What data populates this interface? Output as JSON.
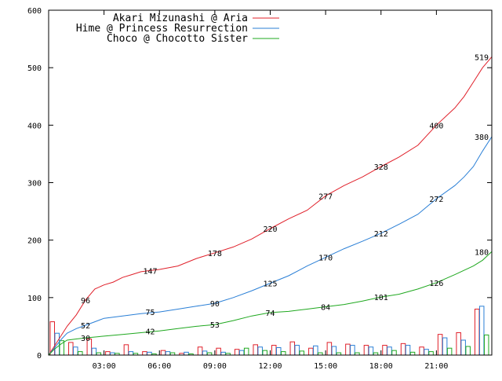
{
  "chart_data": {
    "type": "line",
    "title": "",
    "xlabel": "",
    "ylabel": "",
    "xlim": [
      0,
      24
    ],
    "ylim": [
      0,
      600
    ],
    "grid": false,
    "legend_position": "top-left",
    "x_ticks": [
      {
        "value": 3,
        "label": "03:00"
      },
      {
        "value": 6,
        "label": "06:00"
      },
      {
        "value": 9,
        "label": "09:00"
      },
      {
        "value": 12,
        "label": "12:00"
      },
      {
        "value": 15,
        "label": "15:00"
      },
      {
        "value": 18,
        "label": "18:00"
      },
      {
        "value": 21,
        "label": "21:00"
      }
    ],
    "y_ticks": [
      {
        "value": 0,
        "label": "0"
      },
      {
        "value": 100,
        "label": "100"
      },
      {
        "value": 200,
        "label": "200"
      },
      {
        "value": 300,
        "label": "300"
      },
      {
        "value": 400,
        "label": "400"
      },
      {
        "value": 500,
        "label": "500"
      },
      {
        "value": 600,
        "label": "600"
      }
    ],
    "series": [
      {
        "name": "Akari Mizunashi @ Aria",
        "color": "#e0202a",
        "points": [
          [
            0,
            0
          ],
          [
            0.3,
            15
          ],
          [
            0.7,
            35
          ],
          [
            1,
            50
          ],
          [
            1.5,
            70
          ],
          [
            2,
            96
          ],
          [
            2.5,
            115
          ],
          [
            3,
            122
          ],
          [
            3.5,
            127
          ],
          [
            4,
            135
          ],
          [
            4.5,
            140
          ],
          [
            5,
            145
          ],
          [
            5.5,
            147
          ],
          [
            6,
            149
          ],
          [
            7,
            155
          ],
          [
            8,
            168
          ],
          [
            9,
            178
          ],
          [
            10,
            188
          ],
          [
            11,
            202
          ],
          [
            12,
            220
          ],
          [
            13,
            237
          ],
          [
            14,
            252
          ],
          [
            15,
            277
          ],
          [
            16,
            295
          ],
          [
            17,
            310
          ],
          [
            18,
            328
          ],
          [
            19,
            345
          ],
          [
            20,
            365
          ],
          [
            21,
            400
          ],
          [
            22,
            430
          ],
          [
            22.5,
            450
          ],
          [
            23,
            475
          ],
          [
            23.5,
            500
          ],
          [
            24,
            519
          ]
        ],
        "labels": [
          {
            "x": 2,
            "y": 96,
            "text": "96"
          },
          {
            "x": 5.5,
            "y": 147,
            "text": "147"
          },
          {
            "x": 9,
            "y": 178,
            "text": "178"
          },
          {
            "x": 12,
            "y": 220,
            "text": "220"
          },
          {
            "x": 15,
            "y": 277,
            "text": "277"
          },
          {
            "x": 18,
            "y": 328,
            "text": "328"
          },
          {
            "x": 21,
            "y": 400,
            "text": "400"
          },
          {
            "x": 24,
            "y": 519,
            "text": "519"
          }
        ]
      },
      {
        "name": "Hime @ Princess Resurrection",
        "color": "#2a7fd6",
        "points": [
          [
            0,
            0
          ],
          [
            0.3,
            12
          ],
          [
            0.7,
            28
          ],
          [
            1,
            38
          ],
          [
            1.5,
            46
          ],
          [
            2,
            52
          ],
          [
            2.5,
            58
          ],
          [
            3,
            64
          ],
          [
            4,
            68
          ],
          [
            5,
            72
          ],
          [
            6,
            75
          ],
          [
            7,
            80
          ],
          [
            8,
            85
          ],
          [
            9,
            90
          ],
          [
            10,
            100
          ],
          [
            11,
            112
          ],
          [
            12,
            125
          ],
          [
            13,
            138
          ],
          [
            14,
            155
          ],
          [
            15,
            170
          ],
          [
            16,
            185
          ],
          [
            17,
            198
          ],
          [
            18,
            212
          ],
          [
            19,
            228
          ],
          [
            20,
            245
          ],
          [
            21,
            272
          ],
          [
            22,
            295
          ],
          [
            22.5,
            310
          ],
          [
            23,
            328
          ],
          [
            23.5,
            355
          ],
          [
            24,
            380
          ]
        ],
        "labels": [
          {
            "x": 2,
            "y": 52,
            "text": "52"
          },
          {
            "x": 5.5,
            "y": 75,
            "text": "75"
          },
          {
            "x": 9,
            "y": 90,
            "text": "90"
          },
          {
            "x": 12,
            "y": 125,
            "text": "125"
          },
          {
            "x": 15,
            "y": 170,
            "text": "170"
          },
          {
            "x": 18,
            "y": 212,
            "text": "212"
          },
          {
            "x": 21,
            "y": 272,
            "text": "272"
          },
          {
            "x": 24,
            "y": 380,
            "text": "380"
          }
        ]
      },
      {
        "name": "Choco @ Chocotto Sister",
        "color": "#1fa81f",
        "points": [
          [
            0,
            0
          ],
          [
            0.3,
            10
          ],
          [
            0.7,
            20
          ],
          [
            1,
            26
          ],
          [
            1.5,
            28
          ],
          [
            2,
            30
          ],
          [
            3,
            33
          ],
          [
            4,
            36
          ],
          [
            5,
            39
          ],
          [
            6,
            42
          ],
          [
            7,
            46
          ],
          [
            8,
            50
          ],
          [
            9,
            53
          ],
          [
            10,
            60
          ],
          [
            11,
            68
          ],
          [
            12,
            74
          ],
          [
            13,
            76
          ],
          [
            14,
            80
          ],
          [
            15,
            84
          ],
          [
            16,
            88
          ],
          [
            17,
            94
          ],
          [
            18,
            101
          ],
          [
            19,
            106
          ],
          [
            20,
            115
          ],
          [
            21,
            126
          ],
          [
            22,
            140
          ],
          [
            23,
            155
          ],
          [
            23.5,
            165
          ],
          [
            24,
            180
          ]
        ],
        "labels": [
          {
            "x": 2,
            "y": 30,
            "text": "30"
          },
          {
            "x": 5.5,
            "y": 42,
            "text": "42"
          },
          {
            "x": 9,
            "y": 53,
            "text": "53"
          },
          {
            "x": 12,
            "y": 74,
            "text": "74"
          },
          {
            "x": 15,
            "y": 84,
            "text": "84"
          },
          {
            "x": 18,
            "y": 101,
            "text": "101"
          },
          {
            "x": 21,
            "y": 126,
            "text": "126"
          },
          {
            "x": 24,
            "y": 180,
            "text": "180"
          }
        ]
      }
    ],
    "hourly_bars": [
      {
        "hour": 0,
        "values": [
          58,
          38,
          25
        ]
      },
      {
        "hour": 1,
        "values": [
          22,
          14,
          6
        ]
      },
      {
        "hour": 2,
        "values": [
          28,
          12,
          4
        ]
      },
      {
        "hour": 3,
        "values": [
          6,
          4,
          3
        ]
      },
      {
        "hour": 4,
        "values": [
          18,
          6,
          3
        ]
      },
      {
        "hour": 5,
        "values": [
          6,
          5,
          2
        ]
      },
      {
        "hour": 6,
        "values": [
          8,
          6,
          4
        ]
      },
      {
        "hour": 7,
        "values": [
          3,
          5,
          2
        ]
      },
      {
        "hour": 8,
        "values": [
          14,
          7,
          4
        ]
      },
      {
        "hour": 9,
        "values": [
          12,
          5,
          3
        ]
      },
      {
        "hour": 10,
        "values": [
          10,
          8,
          12
        ]
      },
      {
        "hour": 11,
        "values": [
          18,
          14,
          8
        ]
      },
      {
        "hour": 12,
        "values": [
          17,
          13,
          6
        ]
      },
      {
        "hour": 13,
        "values": [
          23,
          17,
          7
        ]
      },
      {
        "hour": 14,
        "values": [
          12,
          16,
          4
        ]
      },
      {
        "hour": 15,
        "values": [
          22,
          15,
          4
        ]
      },
      {
        "hour": 16,
        "values": [
          19,
          17,
          4
        ]
      },
      {
        "hour": 17,
        "values": [
          17,
          14,
          4
        ]
      },
      {
        "hour": 18,
        "values": [
          17,
          14,
          8
        ]
      },
      {
        "hour": 19,
        "values": [
          20,
          17,
          5
        ]
      },
      {
        "hour": 20,
        "values": [
          14,
          10,
          6
        ]
      },
      {
        "hour": 21,
        "values": [
          36,
          30,
          12
        ]
      },
      {
        "hour": 22,
        "values": [
          39,
          26,
          15
        ]
      },
      {
        "hour": 23,
        "values": [
          80,
          85,
          35
        ]
      }
    ]
  }
}
